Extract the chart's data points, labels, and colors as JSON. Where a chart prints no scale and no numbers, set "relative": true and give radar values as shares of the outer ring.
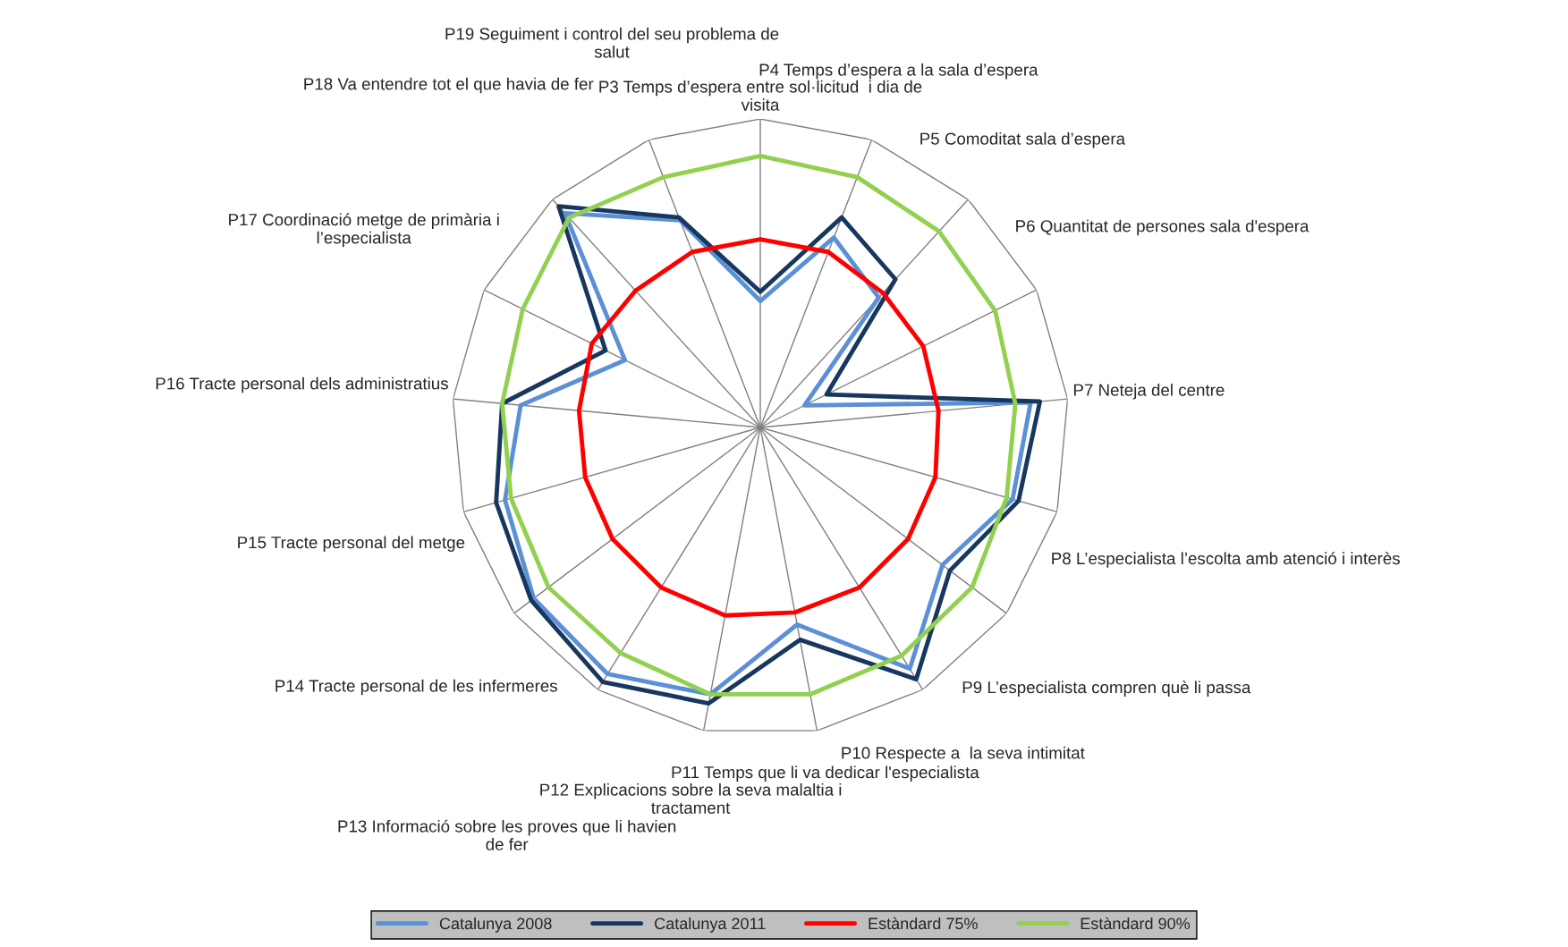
{
  "chart_data": {
    "type": "radar",
    "relative": true,
    "grid": true,
    "legend": "bottom",
    "marker": "none",
    "line_style": "solid",
    "categories": [
      "P3 Temps d’espera entre sol·licitud  i dia de\nvisita",
      "P4 Temps d’espera a la sala d’espera",
      "P5 Comoditat sala d’espera",
      "P6 Quantitat de persones sala d'espera",
      "P7 Neteja del centre",
      "P8 L’especialista l’escolta amb atenció i interès",
      "P9 L’especialista compren què li passa",
      "P10 Respecte a  la seva intimitat",
      "P11 Temps que li va dedicar l'especialista",
      "P12 Explicacions sobre la seva malaltia i\ntractament",
      "P13 Informació sobre les proves que li havien\nde fer",
      "P14 Tracte personal de les infermeres",
      "P15 Tracte personal del metge",
      "P16 Tracte personal dels administratius",
      "P17 Coordinació metge de primària i\nl’especialista",
      "P18 Va entendre tot el que havia de fer",
      "P19 Seguiment i control del seu problema de\nsalut"
    ],
    "series": [
      {
        "name": "Catalunya 2008",
        "color": "#5b8fd6",
        "values": [
          0.41,
          0.66,
          0.57,
          0.16,
          0.88,
          0.85,
          0.74,
          0.92,
          0.65,
          0.88,
          0.94,
          0.92,
          0.86,
          0.78,
          0.49,
          0.94,
          0.72
        ]
      },
      {
        "name": "Catalunya 2011",
        "color": "#17375e",
        "values": [
          0.44,
          0.73,
          0.65,
          0.24,
          0.91,
          0.87,
          0.77,
          0.96,
          0.7,
          0.91,
          0.97,
          0.93,
          0.89,
          0.84,
          0.56,
          0.97,
          0.73
        ]
      },
      {
        "name": "Estàndard 75%",
        "color": "#ff0000",
        "values": [
          0.61,
          0.61,
          0.59,
          0.59,
          0.58,
          0.59,
          0.6,
          0.61,
          0.61,
          0.62,
          0.61,
          0.6,
          0.59,
          0.59,
          0.61,
          0.6,
          0.61
        ]
      },
      {
        "name": "Estàndard 90%",
        "color": "#92d050",
        "values": [
          0.88,
          0.87,
          0.86,
          0.85,
          0.83,
          0.83,
          0.86,
          0.87,
          0.88,
          0.88,
          0.86,
          0.86,
          0.84,
          0.84,
          0.86,
          0.92,
          0.87
        ]
      }
    ]
  }
}
